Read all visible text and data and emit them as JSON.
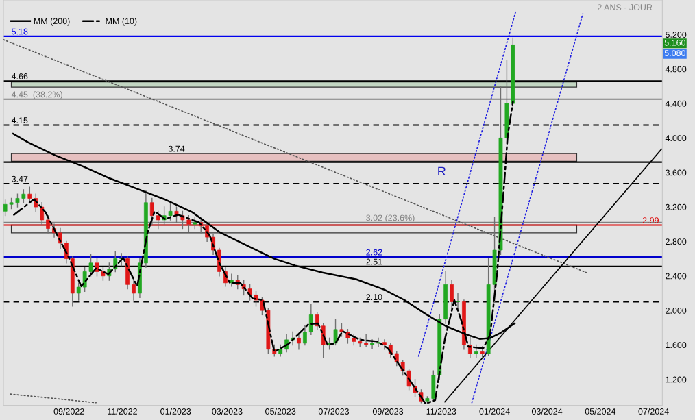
{
  "chart_data": {
    "type": "candlestick",
    "subtitle": "2 ANS - JOUR",
    "x": [
      "2022-06-20",
      "2022-06-27",
      "2022-07-04",
      "2022-07-11",
      "2022-07-18",
      "2022-07-25",
      "2022-08-01",
      "2022-08-08",
      "2022-08-15",
      "2022-08-22",
      "2022-08-29",
      "2022-09-05",
      "2022-09-12",
      "2022-09-19",
      "2022-09-26",
      "2022-10-03",
      "2022-10-10",
      "2022-10-17",
      "2022-10-24",
      "2022-10-31",
      "2022-11-07",
      "2022-11-14",
      "2022-11-21",
      "2022-11-28",
      "2022-12-05",
      "2022-12-12",
      "2022-12-19",
      "2022-12-26",
      "2023-01-02",
      "2023-01-09",
      "2023-01-16",
      "2023-01-23",
      "2023-01-30",
      "2023-02-06",
      "2023-02-13",
      "2023-02-20",
      "2023-02-27",
      "2023-03-06",
      "2023-03-13",
      "2023-03-20",
      "2023-03-27",
      "2023-04-03",
      "2023-04-10",
      "2023-04-17",
      "2023-04-24",
      "2023-05-01",
      "2023-05-08",
      "2023-05-15",
      "2023-05-22",
      "2023-05-29",
      "2023-06-05",
      "2023-06-12",
      "2023-06-19",
      "2023-06-26",
      "2023-07-03",
      "2023-07-10",
      "2023-07-17",
      "2023-07-24",
      "2023-07-31",
      "2023-08-07",
      "2023-08-14",
      "2023-08-21",
      "2023-08-28",
      "2023-09-04",
      "2023-09-11",
      "2023-09-18",
      "2023-09-25",
      "2023-10-02",
      "2023-10-09",
      "2023-10-16",
      "2023-10-23",
      "2023-10-30",
      "2023-11-06",
      "2023-11-13",
      "2023-11-20",
      "2023-11-27",
      "2023-12-04",
      "2023-12-11",
      "2023-12-18",
      "2023-12-25",
      "2024-01-01",
      "2024-01-08",
      "2024-01-15",
      "2024-01-22"
    ],
    "ohlc": [
      [
        3.15,
        3.28,
        3.1,
        3.23
      ],
      [
        3.23,
        3.3,
        3.18,
        3.25
      ],
      [
        3.25,
        3.35,
        3.2,
        3.3
      ],
      [
        3.3,
        3.4,
        3.25,
        3.35
      ],
      [
        3.35,
        3.43,
        3.25,
        3.3
      ],
      [
        3.3,
        3.35,
        3.15,
        3.2
      ],
      [
        3.2,
        3.25,
        3.0,
        3.05
      ],
      [
        3.05,
        3.1,
        2.9,
        2.95
      ],
      [
        2.95,
        3.0,
        2.85,
        2.9
      ],
      [
        2.9,
        2.95,
        2.72,
        2.78
      ],
      [
        2.78,
        2.8,
        2.55,
        2.6
      ],
      [
        2.6,
        2.62,
        2.05,
        2.2
      ],
      [
        2.2,
        2.32,
        2.12,
        2.27
      ],
      [
        2.27,
        2.5,
        2.22,
        2.45
      ],
      [
        2.45,
        2.65,
        2.4,
        2.55
      ],
      [
        2.55,
        2.6,
        2.4,
        2.45
      ],
      [
        2.45,
        2.5,
        2.35,
        2.4
      ],
      [
        2.4,
        2.55,
        2.35,
        2.48
      ],
      [
        2.48,
        2.68,
        2.45,
        2.6
      ],
      [
        2.6,
        2.66,
        2.52,
        2.6
      ],
      [
        2.6,
        2.62,
        2.25,
        2.3
      ],
      [
        2.3,
        2.35,
        2.12,
        2.2
      ],
      [
        2.2,
        2.6,
        2.15,
        2.55
      ],
      [
        2.55,
        3.39,
        2.5,
        3.25
      ],
      [
        3.25,
        3.3,
        3.0,
        3.1
      ],
      [
        3.1,
        3.15,
        2.95,
        3.05
      ],
      [
        3.05,
        3.2,
        3.0,
        3.1
      ],
      [
        3.1,
        3.25,
        3.05,
        3.15
      ],
      [
        3.15,
        3.2,
        3.02,
        3.1
      ],
      [
        3.1,
        3.15,
        2.95,
        3.05
      ],
      [
        3.05,
        3.1,
        2.92,
        3.0
      ],
      [
        3.0,
        3.08,
        2.95,
        3.02
      ],
      [
        3.02,
        3.05,
        2.9,
        2.98
      ],
      [
        2.98,
        3.0,
        2.8,
        2.85
      ],
      [
        2.85,
        2.88,
        2.65,
        2.7
      ],
      [
        2.7,
        2.72,
        2.4,
        2.45
      ],
      [
        2.45,
        2.5,
        2.28,
        2.32
      ],
      [
        2.32,
        2.42,
        2.28,
        2.35
      ],
      [
        2.35,
        2.4,
        2.25,
        2.3
      ],
      [
        2.3,
        2.35,
        2.18,
        2.25
      ],
      [
        2.25,
        2.3,
        2.12,
        2.18
      ],
      [
        2.18,
        2.22,
        2.05,
        2.12
      ],
      [
        2.12,
        2.15,
        1.95,
        2.0
      ],
      [
        2.0,
        2.02,
        1.5,
        1.55
      ],
      [
        1.55,
        1.6,
        1.47,
        1.5
      ],
      [
        1.5,
        1.6,
        1.47,
        1.55
      ],
      [
        1.55,
        1.72,
        1.52,
        1.66
      ],
      [
        1.66,
        1.75,
        1.6,
        1.68
      ],
      [
        1.68,
        1.72,
        1.55,
        1.62
      ],
      [
        1.62,
        1.82,
        1.6,
        1.75
      ],
      [
        1.75,
        2.07,
        1.72,
        1.95
      ],
      [
        1.95,
        1.98,
        1.78,
        1.82
      ],
      [
        1.82,
        1.85,
        1.45,
        1.6
      ],
      [
        1.6,
        1.68,
        1.55,
        1.62
      ],
      [
        1.62,
        1.9,
        1.6,
        1.78
      ],
      [
        1.78,
        1.85,
        1.7,
        1.75
      ],
      [
        1.75,
        1.78,
        1.62,
        1.68
      ],
      [
        1.68,
        1.72,
        1.6,
        1.64
      ],
      [
        1.64,
        1.68,
        1.58,
        1.62
      ],
      [
        1.62,
        1.72,
        1.58,
        1.6
      ],
      [
        1.6,
        1.66,
        1.56,
        1.62
      ],
      [
        1.62,
        1.68,
        1.58,
        1.63
      ],
      [
        1.63,
        1.66,
        1.55,
        1.6
      ],
      [
        1.6,
        1.62,
        1.46,
        1.5
      ],
      [
        1.5,
        1.52,
        1.36,
        1.4
      ],
      [
        1.4,
        1.42,
        1.25,
        1.3
      ],
      [
        1.3,
        1.32,
        1.08,
        1.12
      ],
      [
        1.12,
        1.2,
        1.0,
        1.05
      ],
      [
        1.05,
        1.08,
        0.93,
        0.95
      ],
      [
        0.95,
        1.0,
        0.92,
        0.98
      ],
      [
        0.98,
        1.3,
        0.95,
        1.25
      ],
      [
        1.25,
        1.95,
        1.2,
        1.9
      ],
      [
        1.9,
        2.45,
        1.85,
        2.3
      ],
      [
        2.3,
        2.35,
        2.0,
        2.1
      ],
      [
        2.1,
        2.2,
        2.02,
        2.1
      ],
      [
        2.1,
        2.12,
        1.55,
        1.6
      ],
      [
        1.6,
        1.7,
        1.45,
        1.5
      ],
      [
        1.5,
        1.6,
        1.45,
        1.52
      ],
      [
        1.52,
        1.58,
        1.46,
        1.5
      ],
      [
        1.5,
        2.6,
        1.48,
        2.3
      ],
      [
        2.3,
        3.08,
        2.1,
        2.7
      ],
      [
        2.7,
        4.6,
        2.65,
        4.0
      ],
      [
        4.0,
        4.9,
        3.95,
        4.4
      ],
      [
        4.4,
        5.16,
        4.35,
        5.08
      ]
    ],
    "series": [
      {
        "name": "MM (200)",
        "type": "line",
        "color": "#000000",
        "line_style": "solid",
        "x": [
          "2022-06-29",
          "2022-07-16",
          "2022-08-16",
          "2022-09-17",
          "2022-10-18",
          "2022-11-18",
          "2022-12-19",
          "2023-01-20",
          "2023-02-20",
          "2023-03-24",
          "2023-04-24",
          "2023-05-18",
          "2023-06-18",
          "2023-07-27",
          "2023-08-28",
          "2023-09-20",
          "2023-10-14",
          "2023-11-06",
          "2023-11-30",
          "2023-12-15",
          "2023-12-27",
          "2024-01-08",
          "2024-01-24"
        ],
        "values": [
          4.05,
          3.95,
          3.8,
          3.67,
          3.53,
          3.41,
          3.29,
          3.14,
          2.91,
          2.75,
          2.6,
          2.52,
          2.44,
          2.36,
          2.24,
          2.12,
          1.96,
          1.82,
          1.72,
          1.67,
          1.68,
          1.74,
          1.85
        ]
      },
      {
        "name": "MM (10)",
        "type": "line",
        "color": "#000000",
        "line_style": "dashdot",
        "x": [
          "2022-06-30",
          "2022-07-23",
          "2022-08-05",
          "2022-09-01",
          "2022-09-15",
          "2022-10-02",
          "2022-10-16",
          "2022-11-02",
          "2022-11-18",
          "2022-11-30",
          "2022-12-08",
          "2022-12-20",
          "2023-01-04",
          "2023-01-28",
          "2023-02-09",
          "2023-02-20",
          "2023-03-04",
          "2023-03-16",
          "2023-03-30",
          "2023-04-11",
          "2023-04-24",
          "2023-05-10",
          "2023-06-02",
          "2023-06-13",
          "2023-06-24",
          "2023-07-03",
          "2023-07-11",
          "2023-07-31",
          "2023-08-20",
          "2023-09-01",
          "2023-09-20",
          "2023-10-14",
          "2023-10-25",
          "2023-11-05",
          "2023-11-16",
          "2023-11-24",
          "2023-12-02",
          "2023-12-19",
          "2023-12-27",
          "2024-01-04",
          "2024-01-12",
          "2024-01-16",
          "2024-01-22"
        ],
        "values": [
          3.11,
          3.29,
          3.14,
          2.61,
          2.28,
          2.49,
          2.42,
          2.61,
          2.28,
          2.91,
          3.15,
          3.06,
          3.11,
          3.02,
          2.87,
          2.55,
          2.32,
          2.32,
          2.14,
          2.12,
          1.52,
          1.61,
          1.84,
          1.85,
          1.6,
          1.62,
          1.76,
          1.66,
          1.64,
          1.56,
          1.28,
          0.92,
          0.96,
          1.66,
          2.12,
          1.88,
          1.58,
          1.56,
          1.72,
          2.44,
          3.47,
          4.02,
          4.42
        ]
      },
      {
        "type": "line",
        "color": "#555555",
        "line_style": "dotted",
        "x": [
          "2022-06-18",
          "2024-04-15"
        ],
        "values": [
          5.14,
          2.44
        ]
      },
      {
        "type": "line",
        "color": "#555555",
        "line_style": "dotted",
        "x": [
          "2022-06-26",
          "2022-10-02"
        ],
        "values": [
          1.03,
          0.93
        ]
      },
      {
        "type": "line",
        "color": "#1f1fe0",
        "line_style": "dotted",
        "x": [
          "2023-10-06",
          "2024-01-25"
        ],
        "values": [
          1.47,
          5.46
        ]
      },
      {
        "type": "line",
        "color": "#1f1fe0",
        "line_style": "dotted",
        "x": [
          "2023-12-06",
          "2024-04-11"
        ],
        "values": [
          0.93,
          5.44
        ]
      },
      {
        "type": "line",
        "color": "#000000",
        "line_style": "solid",
        "x": [
          "2023-11-05",
          "2024-07-10"
        ],
        "values": [
          0.94,
          3.87
        ]
      }
    ],
    "ref_lines": [
      {
        "axis": "y",
        "value": 5.18,
        "label": "5.18",
        "color": "#0000ee",
        "line_style": "solid"
      },
      {
        "axis": "y",
        "value": 4.66,
        "label": "4.66",
        "color": "#000000",
        "line_style": "solid"
      },
      {
        "axis": "y",
        "value": 4.45,
        "label": "4.45  (38.2%)",
        "color": "#808080",
        "line_style": "solid"
      },
      {
        "axis": "y",
        "value": 4.15,
        "label": "4.15",
        "color": "#000000",
        "line_style": "dashed"
      },
      {
        "axis": "y",
        "value": 3.72,
        "color": "#000000",
        "line_style": "solid"
      },
      {
        "axis": "y",
        "value": 3.47,
        "label": "3.47",
        "color": "#000000",
        "line_style": "dashed"
      },
      {
        "axis": "y",
        "value": 3.02,
        "label": "3.02 (23.6%)",
        "color": "#808080",
        "line_style": "solid"
      },
      {
        "axis": "y",
        "value": 2.99,
        "label": "2.99",
        "color": "#dd0000",
        "line_style": "solid"
      },
      {
        "axis": "y",
        "value": 2.62,
        "label": "2.62",
        "color": "#0000cc",
        "line_style": "solid"
      },
      {
        "axis": "y",
        "value": 2.51,
        "label": "2.51",
        "color": "#000000",
        "line_style": "solid"
      },
      {
        "axis": "y",
        "value": 2.1,
        "label": "2.10",
        "color": "#000000",
        "line_style": "dashed"
      }
    ],
    "bands": [
      {
        "axis": "y",
        "from": 4.59,
        "to": 4.65,
        "color": "#c2d6c2"
      },
      {
        "axis": "y",
        "from": 3.73,
        "to": 3.82,
        "label": "3.74",
        "color": "#e6c0c0"
      },
      {
        "axis": "y",
        "from": 2.9,
        "to": 2.99,
        "color": "#e4e4e4"
      }
    ],
    "annotations": [
      "R",
      "5.160",
      "5.080"
    ],
    "xlim": [
      "2022-06-18",
      "2024-07-11"
    ],
    "xticks": [
      {
        "value": "2022-09-01",
        "label": "09/2022"
      },
      {
        "value": "2022-11-01",
        "label": "11/2022"
      },
      {
        "value": "2023-01-01",
        "label": "01/2023"
      },
      {
        "value": "2023-03-01",
        "label": "03/2023"
      },
      {
        "value": "2023-05-01",
        "label": "05/2023"
      },
      {
        "value": "2023-07-01",
        "label": "07/2023"
      },
      {
        "value": "2023-09-01",
        "label": "09/2023"
      },
      {
        "value": "2023-11-01",
        "label": "11/2023"
      },
      {
        "value": "2024-01-01",
        "label": "01/2024"
      },
      {
        "value": "2024-03-01",
        "label": "03/2024"
      },
      {
        "value": "2024-05-01",
        "label": "05/2024"
      },
      {
        "value": "2024-07-01",
        "label": "07/2024"
      }
    ],
    "ylim": [
      0.9,
      5.6
    ],
    "yticks": [
      {
        "value": 1.2,
        "label": "1.200"
      },
      {
        "value": 1.6,
        "label": "1.600"
      },
      {
        "value": 2.0,
        "label": "2.000"
      },
      {
        "value": 2.4,
        "label": "2.400"
      },
      {
        "value": 2.8,
        "label": "2.800"
      },
      {
        "value": 3.2,
        "label": "3.200"
      },
      {
        "value": 3.6,
        "label": "3.600"
      },
      {
        "value": 4.0,
        "label": "4.000"
      },
      {
        "value": 4.4,
        "label": "4.400"
      },
      {
        "value": 4.8,
        "label": "4.800"
      },
      {
        "value": 5.2,
        "label": "5.200"
      }
    ],
    "grid": false,
    "legend": "top left"
  }
}
